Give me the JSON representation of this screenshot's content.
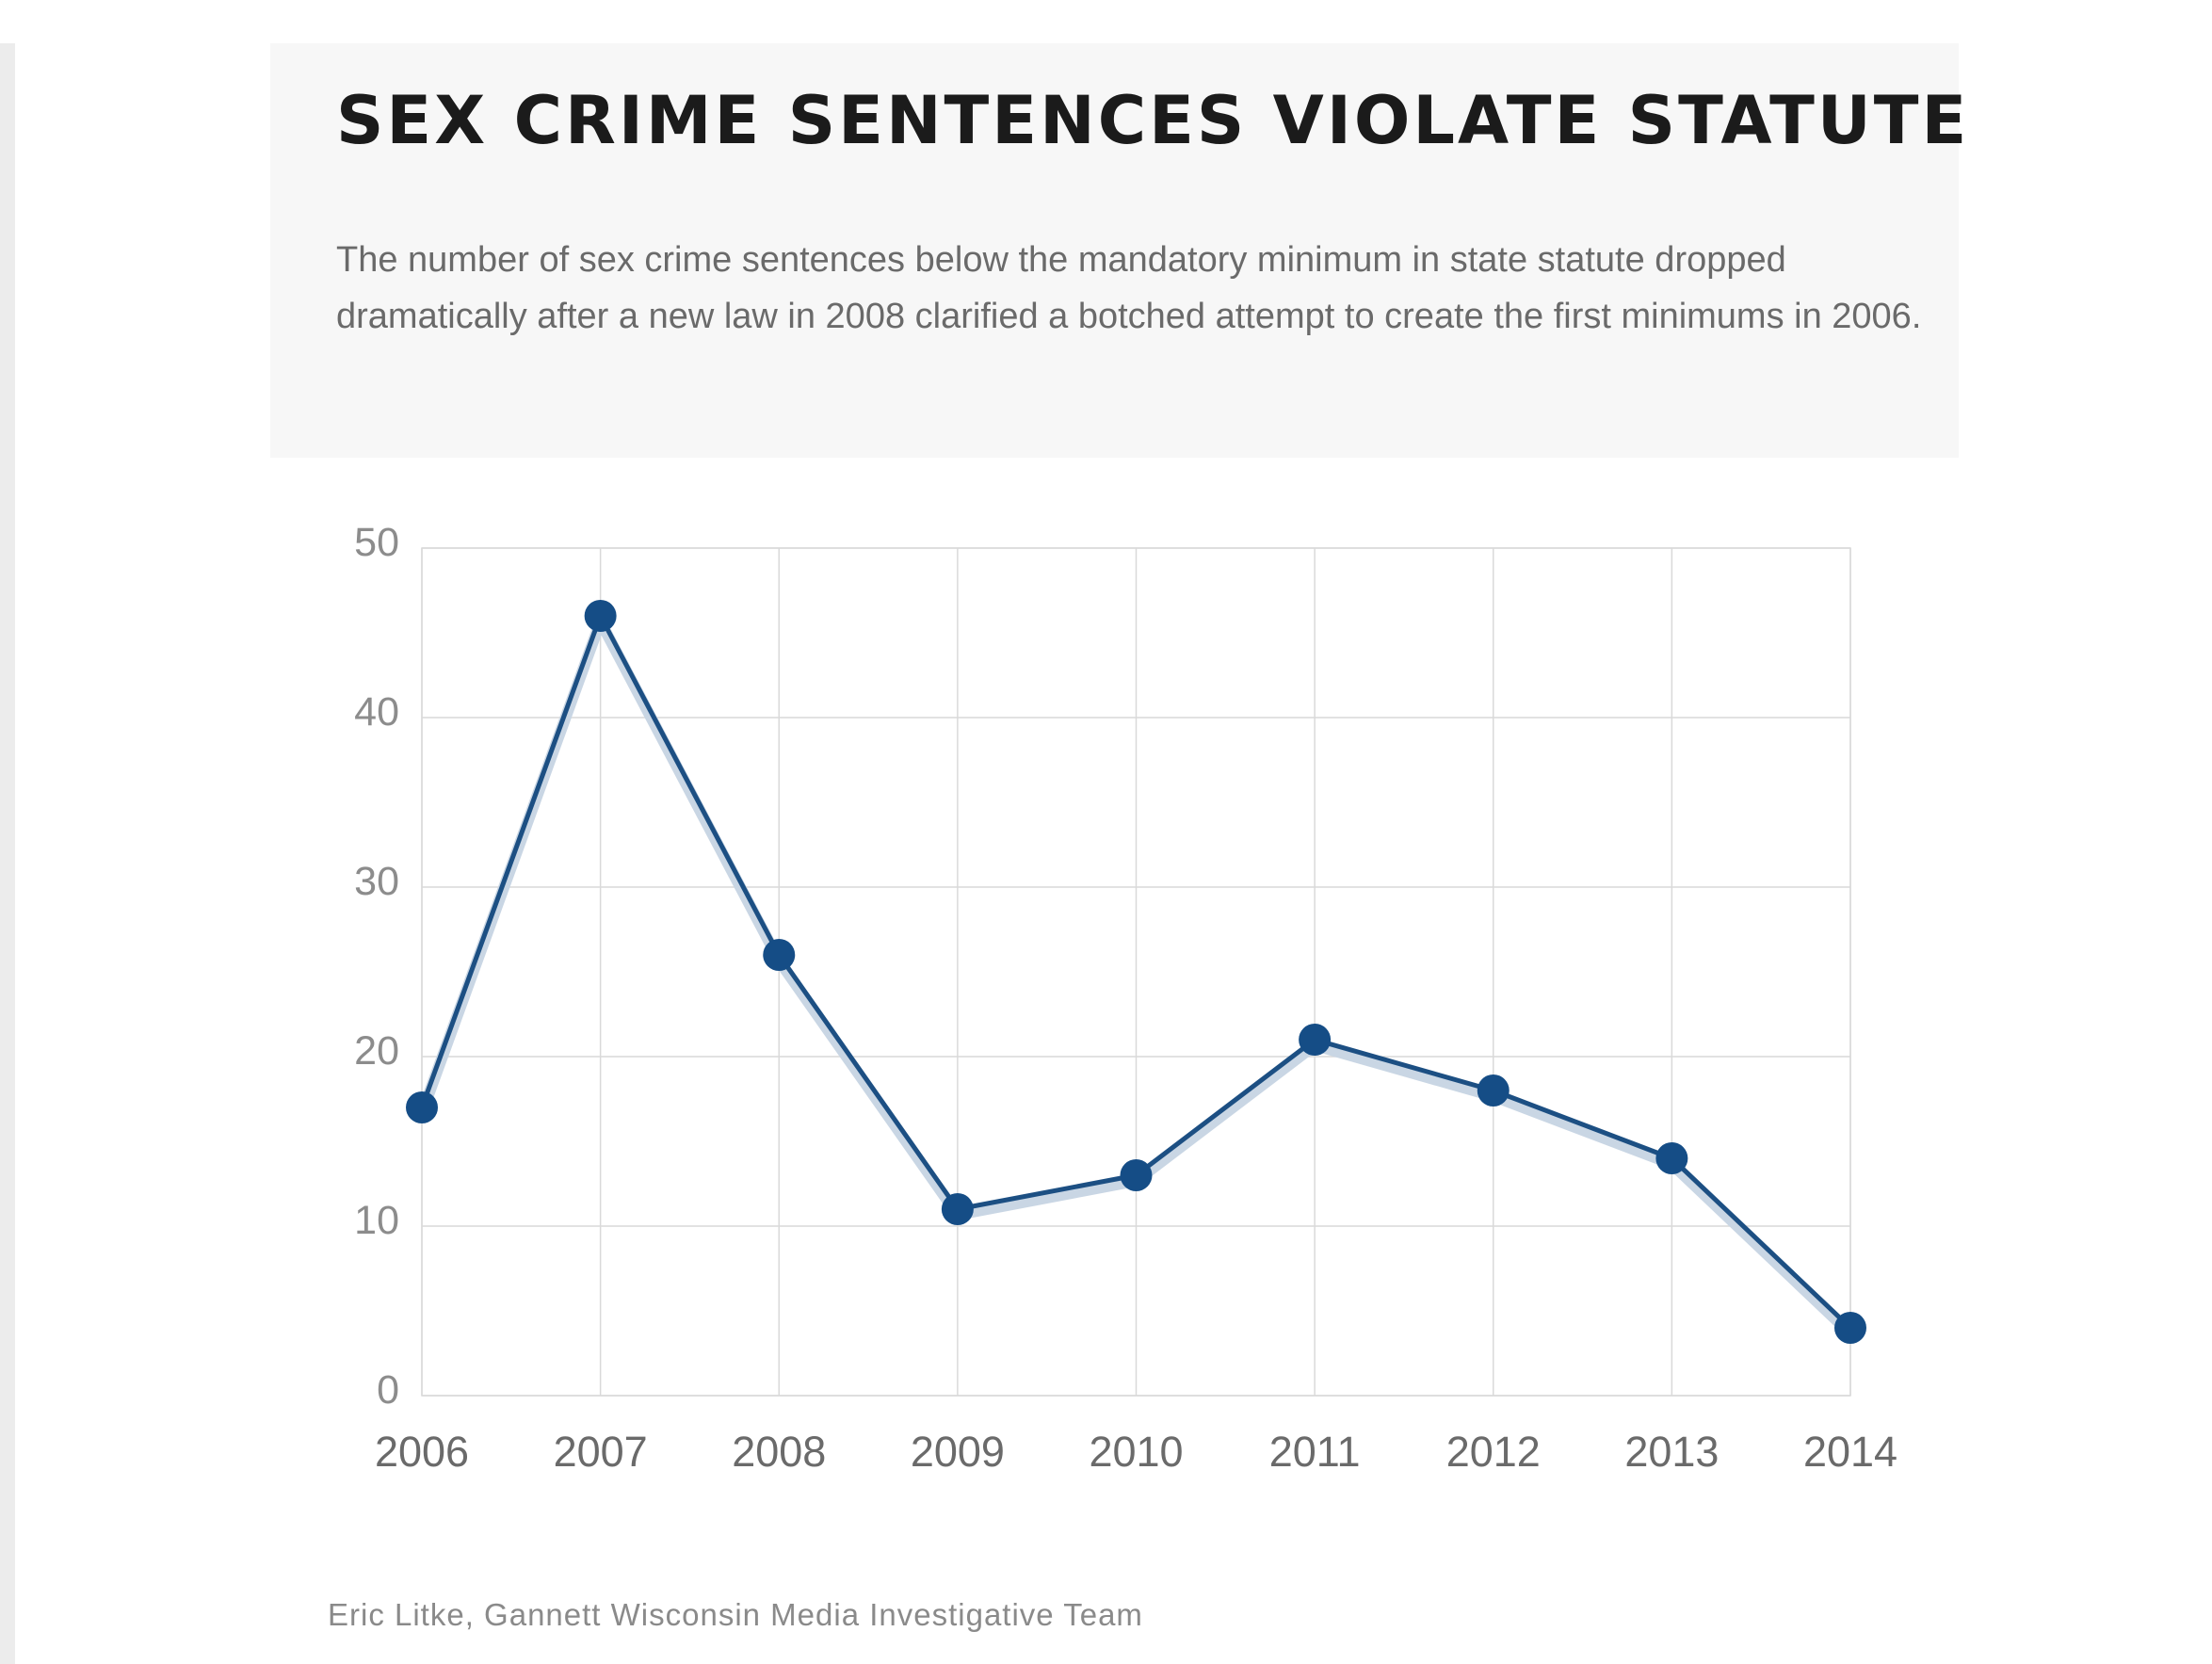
{
  "header": {
    "title": "SEX CRIME SENTENCES VIOLATE STATUTE",
    "subtitle": "The number of sex crime sentences below the mandatory minimum in state statute dropped dramatically after a new law in 2008 clarified a botched attempt to create the first minimums in 2006."
  },
  "chart_data": {
    "type": "line",
    "title": "SEX CRIME SENTENCES VIOLATE STATUTE",
    "subtitle": "The number of sex crime sentences below the mandatory minimum in state statute dropped dramatically after a new law in 2008 clarified a botched attempt to create the first minimums in 2006.",
    "xlabel": "",
    "ylabel": "",
    "categories": [
      "2006",
      "2007",
      "2008",
      "2009",
      "2010",
      "2011",
      "2012",
      "2013",
      "2014"
    ],
    "series": [
      {
        "values": [
          17,
          46,
          26,
          11,
          13,
          21,
          18,
          14,
          4
        ]
      }
    ],
    "ylim": [
      0,
      50
    ],
    "yticks": [
      0,
      10,
      20,
      30,
      40,
      50
    ],
    "grid": true,
    "legend": "none",
    "colors": {
      "line": "#1c4f83",
      "marker": "#154d86",
      "grid": "#d9d9d9",
      "tick_label": "#8c8c8c",
      "x_label": "#6a6a6a"
    }
  },
  "footer": {
    "credit": "Eric Litke, Gannett Wisconsin Media Investigative Team"
  }
}
